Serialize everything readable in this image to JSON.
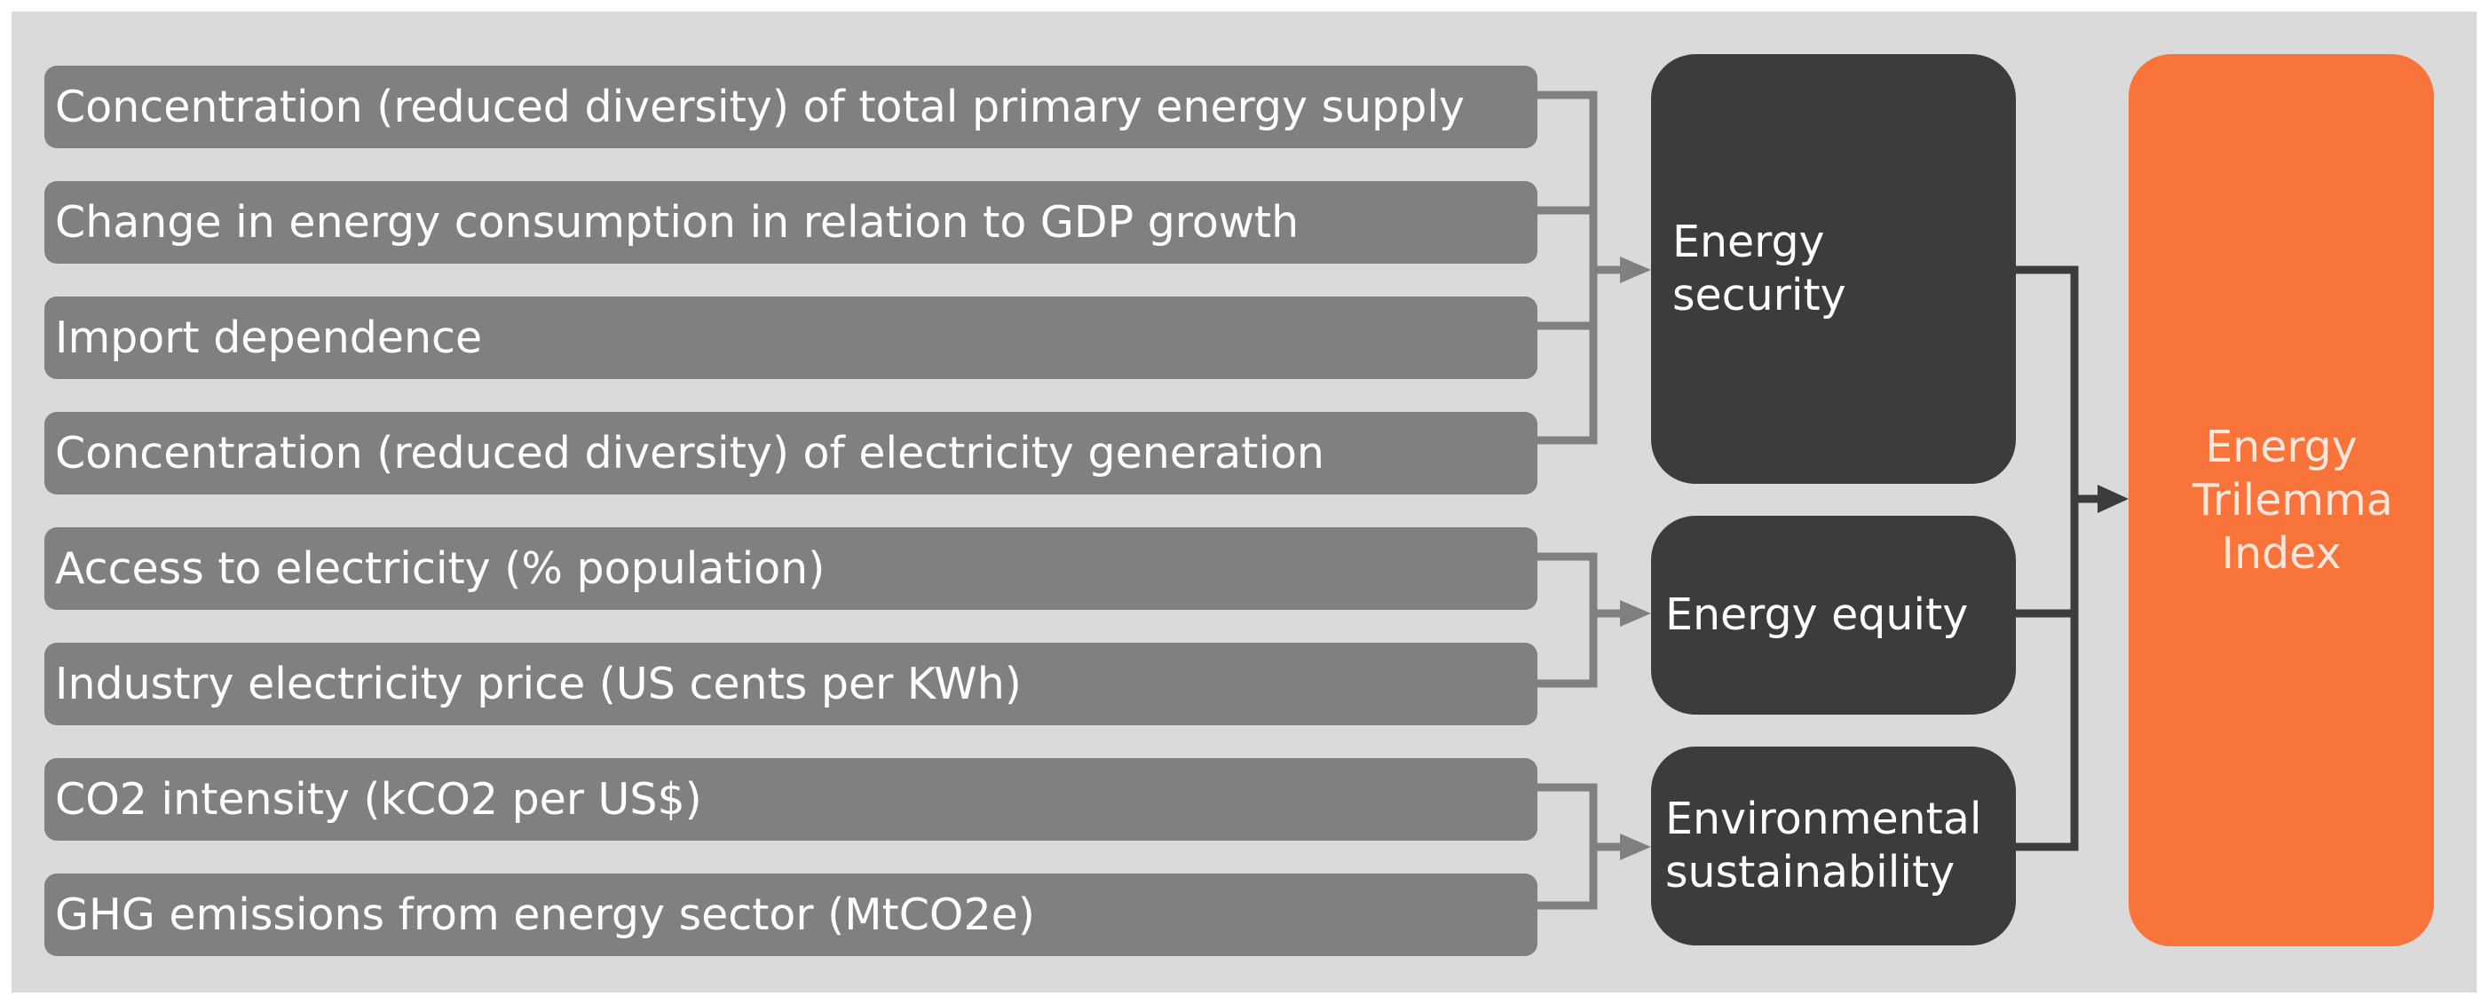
{
  "colors": {
    "background": "#dadada",
    "indicator_fill": "#808080",
    "pillar_fill": "#3c3c3c",
    "index_fill": "#f9743a",
    "index_text": "#fde6dc",
    "connector_light": "#808080",
    "connector_dark": "#3c3c3c"
  },
  "indicators": [
    "Concentration (reduced diversity) of total primary energy supply",
    "Change in energy consumption in relation to GDP growth",
    "Import dependence",
    "Concentration (reduced diversity) of electricity generation",
    "Access to electricity (% population)",
    "Industry electricity price (US cents per KWh)",
    "CO2 intensity (kCO2 per US$)",
    "GHG emissions from energy sector (MtCO2e)"
  ],
  "pillars": [
    {
      "label_line1": "Energy",
      "label_line2": "security"
    },
    {
      "label_line1": "Energy equity",
      "label_line2": ""
    },
    {
      "label_line1": "Environmental",
      "label_line2": "sustainability"
    }
  ],
  "index": {
    "line1": "Energy",
    "line2": "Trilemma",
    "line3": "Index"
  }
}
